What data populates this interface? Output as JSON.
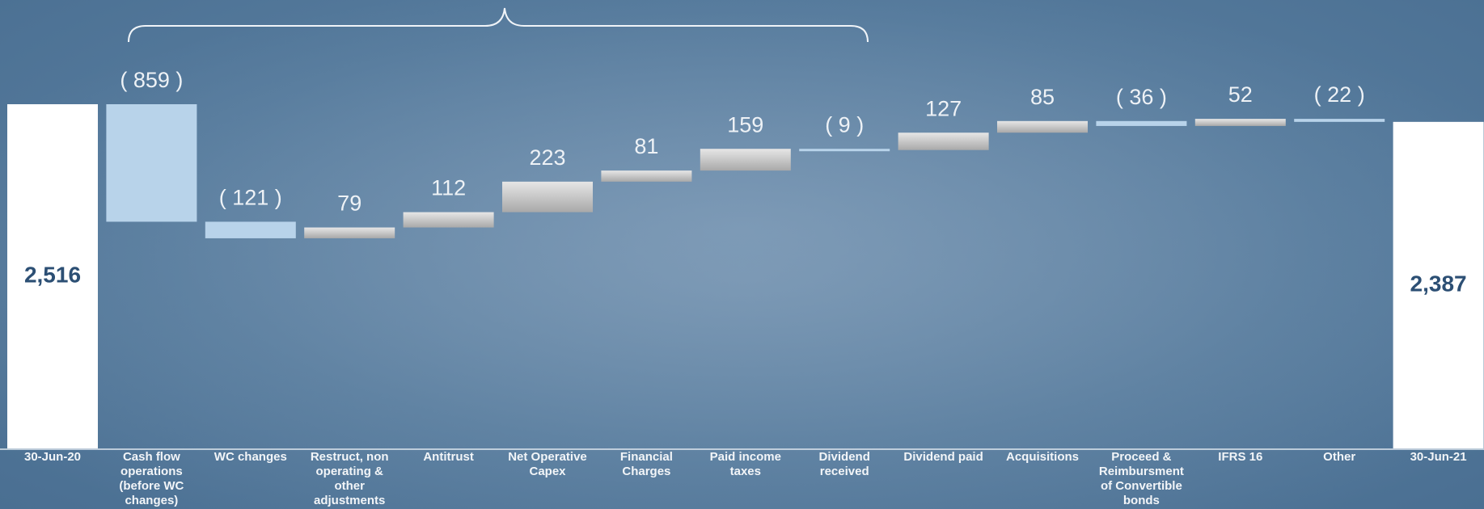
{
  "chart_data": {
    "type": "waterfall",
    "categories": [
      "30-Jun-20",
      "Cash flow operations (before WC changes)",
      "WC changes",
      "Restruct, non operating & other adjustments",
      "Antitrust",
      "Net Operative Capex",
      "Financial Charges",
      "Paid income taxes",
      "Dividend received",
      "Dividend paid",
      "Acquisitions",
      "Proceed & Reimbursment of Convertible bonds",
      "IFRS 16",
      "Other",
      "30-Jun-21"
    ],
    "values": [
      2516,
      -859,
      -121,
      79,
      112,
      223,
      81,
      159,
      -9,
      127,
      85,
      -36,
      52,
      -22,
      2387
    ],
    "value_labels": [
      "2,516",
      "( 859 )",
      "( 121 )",
      "79",
      "112",
      "223",
      "81",
      "159",
      "( 9 )",
      "127",
      "85",
      "( 36 )",
      "52",
      "( 22 )",
      "2,387"
    ],
    "colors": {
      "total": "#ffffff",
      "increase": "#c4c4c4",
      "decrease": "#b8d3ea"
    }
  }
}
